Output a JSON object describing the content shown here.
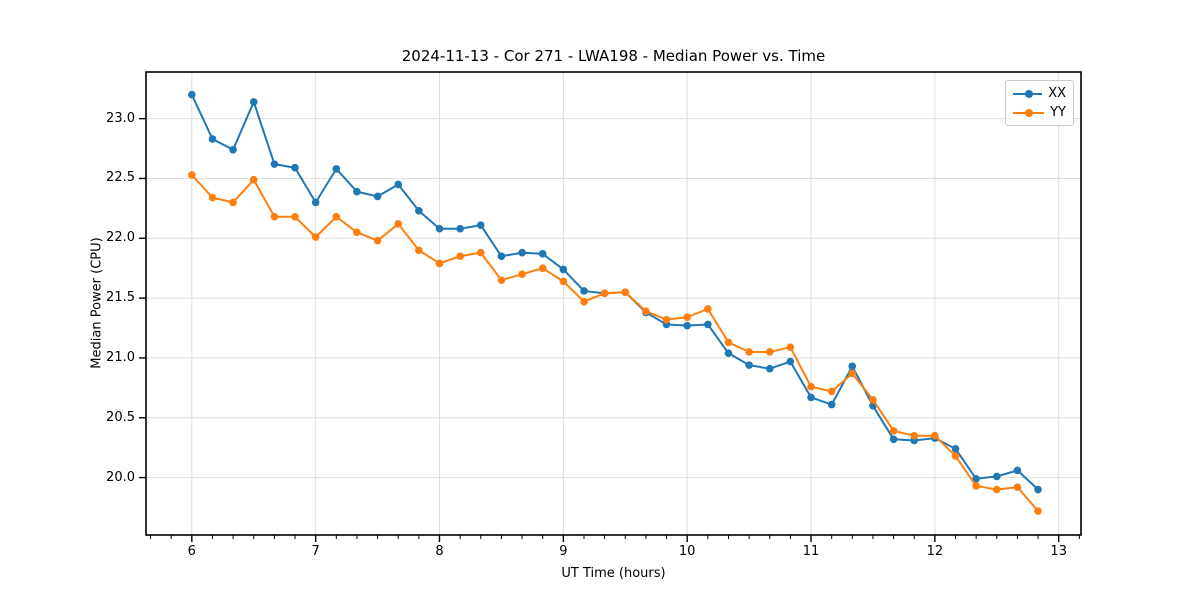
{
  "page": {
    "title": "2024-11-13 - Cor 271 - LWA198 - Median Power vs. Time"
  },
  "colors": {
    "series_xx": "#1f77b4",
    "series_yy": "#ff7f0e",
    "grid": "#dedede",
    "spine": "#000000",
    "background": "#ffffff"
  },
  "chart_data": {
    "type": "line",
    "title": "2024-11-13 - Cor 271 - LWA198 - Median Power vs. Time",
    "xlabel": "UT Time (hours)",
    "ylabel": "Median Power (CPU)",
    "xlim": [
      5.63,
      13.18
    ],
    "ylim": [
      19.52,
      23.39
    ],
    "x_ticks": [
      6,
      7,
      8,
      9,
      10,
      11,
      12,
      13
    ],
    "y_ticks": [
      20.0,
      20.5,
      21.0,
      21.5,
      22.0,
      22.5,
      23.0
    ],
    "x_minor_step": 0.1667,
    "grid": true,
    "legend_position": "upper right",
    "marker": "circle",
    "x": [
      6.0,
      6.167,
      6.333,
      6.5,
      6.667,
      6.833,
      7.0,
      7.167,
      7.333,
      7.5,
      7.667,
      7.833,
      8.0,
      8.167,
      8.333,
      8.5,
      8.667,
      8.833,
      9.0,
      9.167,
      9.333,
      9.5,
      9.667,
      9.833,
      10.0,
      10.167,
      10.333,
      10.5,
      10.667,
      10.833,
      11.0,
      11.167,
      11.333,
      11.5,
      11.667,
      11.833,
      12.0,
      12.167,
      12.333,
      12.5,
      12.667,
      12.833
    ],
    "series": [
      {
        "name": "XX",
        "color": "#1f77b4",
        "values": [
          23.2,
          22.83,
          22.74,
          23.14,
          22.62,
          22.59,
          22.3,
          22.58,
          22.39,
          22.35,
          22.45,
          22.23,
          22.08,
          22.08,
          22.11,
          21.85,
          21.88,
          21.87,
          21.74,
          21.56,
          21.54,
          21.55,
          21.38,
          21.28,
          21.27,
          21.28,
          21.04,
          20.94,
          20.91,
          20.97,
          20.67,
          20.61,
          20.93,
          20.6,
          20.32,
          20.31,
          20.33,
          20.24,
          19.99,
          20.01,
          20.06,
          19.9
        ]
      },
      {
        "name": "YY",
        "color": "#ff7f0e",
        "values": [
          22.53,
          22.34,
          22.3,
          22.49,
          22.18,
          22.18,
          22.01,
          22.18,
          22.05,
          21.98,
          22.12,
          21.9,
          21.79,
          21.85,
          21.88,
          21.65,
          21.7,
          21.75,
          21.64,
          21.47,
          21.54,
          21.55,
          21.39,
          21.32,
          21.34,
          21.41,
          21.13,
          21.05,
          21.05,
          21.09,
          20.76,
          20.72,
          20.87,
          20.65,
          20.39,
          20.35,
          20.35,
          20.18,
          19.93,
          19.9,
          19.92,
          19.72
        ]
      }
    ]
  }
}
